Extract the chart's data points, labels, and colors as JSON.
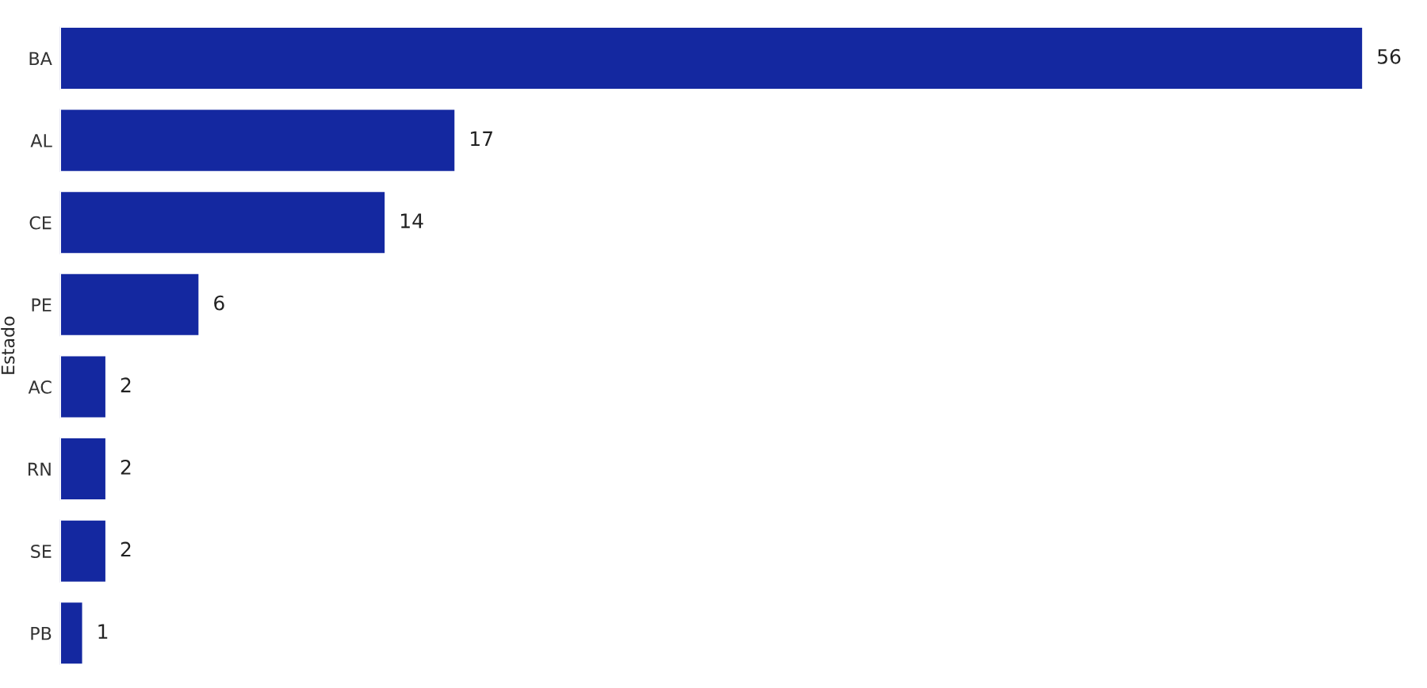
{
  "chart_data": {
    "type": "bar",
    "orientation": "horizontal",
    "ylabel": "Estado",
    "categories": [
      "BA",
      "AL",
      "CE",
      "PE",
      "AC",
      "RN",
      "SE",
      "PB"
    ],
    "values": [
      56,
      17,
      14,
      6,
      2,
      2,
      2,
      1
    ],
    "color": "#1428a0",
    "data_labels": true,
    "grid": false,
    "legend": false,
    "tick_labels": "y"
  }
}
